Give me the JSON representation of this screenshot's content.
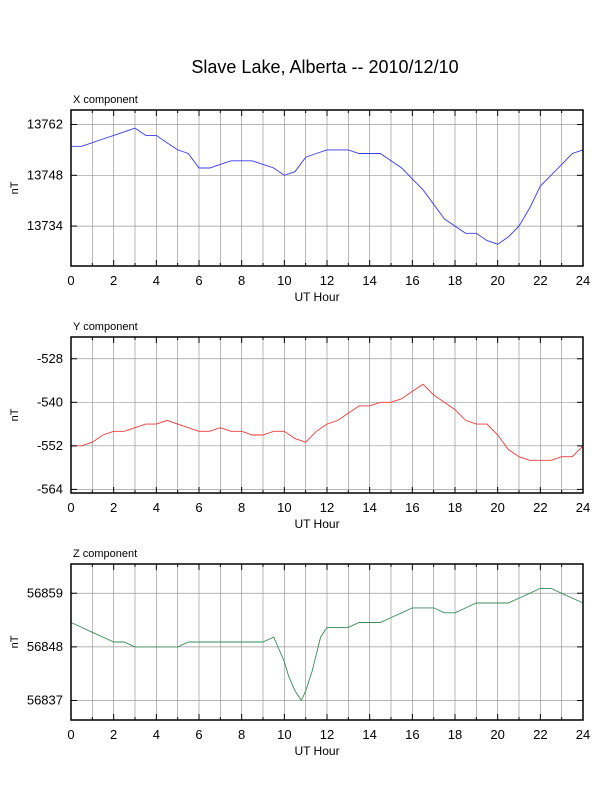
{
  "title": "Slave Lake, Alberta -- 2010/12/10",
  "chart_data": [
    {
      "type": "line",
      "panel_title": "X component",
      "xlabel": "UT Hour",
      "ylabel": "nT",
      "xlim": [
        0,
        24
      ],
      "x_ticks": [
        0,
        2,
        4,
        6,
        8,
        10,
        12,
        14,
        16,
        18,
        20,
        22,
        24
      ],
      "y_ticks": [
        13734,
        13748,
        13762
      ],
      "ylim": [
        13723,
        13766
      ],
      "grid": true,
      "color": "#3a3aee",
      "series": [
        {
          "x": [
            0,
            0.5,
            1,
            1.5,
            2,
            2.5,
            3,
            3.5,
            4,
            4.5,
            5,
            5.5,
            6,
            6.5,
            7,
            7.5,
            8,
            8.5,
            9,
            9.5,
            10,
            10.5,
            11,
            11.5,
            12,
            12.5,
            13,
            13.5,
            14,
            14.5,
            15,
            15.5,
            16,
            16.5,
            17,
            17.5,
            18,
            18.5,
            19,
            19.5,
            20,
            20.5,
            21,
            21.5,
            22,
            22.5,
            23,
            23.5,
            24
          ],
          "values": [
            13756,
            13756,
            13757,
            13758,
            13759,
            13760,
            13761,
            13759,
            13759,
            13757,
            13755,
            13754,
            13750,
            13750,
            13751,
            13752,
            13752,
            13752,
            13751,
            13750,
            13748,
            13749,
            13753,
            13754,
            13755,
            13755,
            13755,
            13754,
            13754,
            13754,
            13752,
            13750,
            13747,
            13744,
            13740,
            13736,
            13734,
            13732,
            13732,
            13730,
            13729,
            13731,
            13734,
            13739,
            13745,
            13748,
            13751,
            13754,
            13755
          ]
        }
      ]
    },
    {
      "type": "line",
      "panel_title": "Y component",
      "xlabel": "UT Hour",
      "ylabel": "nT",
      "xlim": [
        0,
        24
      ],
      "x_ticks": [
        0,
        2,
        4,
        6,
        8,
        10,
        12,
        14,
        16,
        18,
        20,
        22,
        24
      ],
      "y_ticks": [
        -564,
        -552,
        -540,
        -528
      ],
      "ylim": [
        -565,
        -522
      ],
      "grid": true,
      "color": "#ee3a3a",
      "series": [
        {
          "x": [
            0,
            0.5,
            1,
            1.5,
            2,
            2.5,
            3,
            3.5,
            4,
            4.5,
            5,
            5.5,
            6,
            6.5,
            7,
            7.5,
            8,
            8.5,
            9,
            9.5,
            10,
            10.5,
            11,
            11.5,
            12,
            12.5,
            13,
            13.5,
            14,
            14.5,
            15,
            15.5,
            16,
            16.5,
            17,
            17.5,
            18,
            18.5,
            19,
            19.5,
            20,
            20.5,
            21,
            21.5,
            22,
            22.5,
            23,
            23.5,
            24
          ],
          "values": [
            -552,
            -552,
            -551,
            -549,
            -548,
            -548,
            -547,
            -546,
            -546,
            -545,
            -546,
            -547,
            -548,
            -548,
            -547,
            -548,
            -548,
            -549,
            -549,
            -548,
            -548,
            -550,
            -551,
            -548,
            -546,
            -545,
            -543,
            -541,
            -541,
            -540,
            -540,
            -539,
            -537,
            -535,
            -538,
            -540,
            -542,
            -545,
            -546,
            -546,
            -549,
            -553,
            -555,
            -556,
            -556,
            -556,
            -555,
            -555,
            -552
          ]
        }
      ]
    },
    {
      "type": "line",
      "panel_title": "Z component",
      "xlabel": "UT Hour",
      "ylabel": "nT",
      "xlim": [
        0,
        24
      ],
      "x_ticks": [
        0,
        2,
        4,
        6,
        8,
        10,
        12,
        14,
        16,
        18,
        20,
        22,
        24
      ],
      "y_ticks": [
        56837,
        56848,
        56859
      ],
      "ylim": [
        56833,
        56865
      ],
      "grid": true,
      "color": "#3a8a5a",
      "series": [
        {
          "x": [
            0,
            0.5,
            1,
            1.5,
            2,
            2.5,
            3,
            3.5,
            4,
            4.5,
            5,
            5.5,
            6,
            6.5,
            7,
            7.5,
            8,
            8.5,
            9,
            9.5,
            10,
            10.2,
            10.5,
            10.8,
            11,
            11.3,
            11.7,
            12,
            12.5,
            13,
            13.5,
            14,
            14.5,
            15,
            15.5,
            16,
            16.5,
            17,
            17.5,
            18,
            18.5,
            19,
            19.5,
            20,
            20.5,
            21,
            21.5,
            22,
            22.5,
            23,
            23.5,
            24
          ],
          "values": [
            56853,
            56852,
            56851,
            56850,
            56849,
            56849,
            56848,
            56848,
            56848,
            56848,
            56848,
            56849,
            56849,
            56849,
            56849,
            56849,
            56849,
            56849,
            56849,
            56850,
            56845,
            56842,
            56839,
            56837,
            56839,
            56843,
            56850,
            56852,
            56852,
            56852,
            56853,
            56853,
            56853,
            56854,
            56855,
            56856,
            56856,
            56856,
            56855,
            56855,
            56856,
            56857,
            56857,
            56857,
            56857,
            56858,
            56859,
            56860,
            56860,
            56859,
            56858,
            56857
          ]
        }
      ]
    }
  ]
}
